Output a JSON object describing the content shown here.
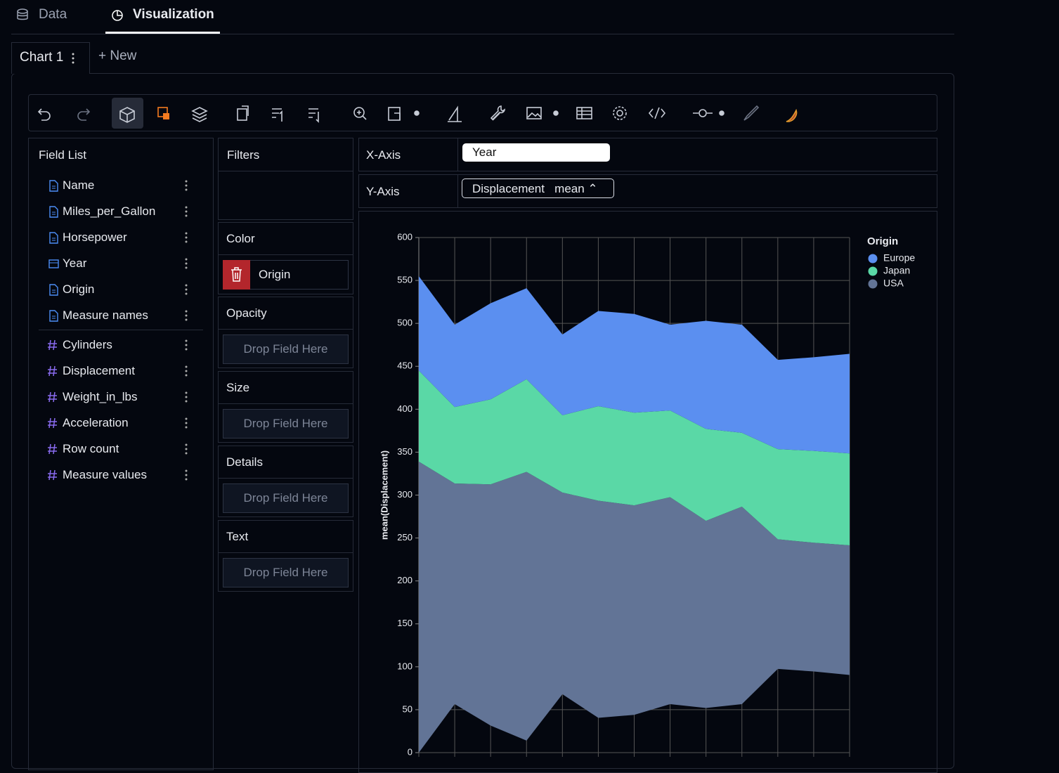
{
  "tabs": {
    "data": "Data",
    "visualization": "Visualization"
  },
  "chart_tabs": {
    "current": "Chart 1",
    "new": "+ New"
  },
  "field_list": {
    "title": "Field List",
    "dimensions": [
      "Name",
      "Miles_per_Gallon",
      "Horsepower",
      "Year",
      "Origin",
      "Measure names"
    ],
    "measures": [
      "Cylinders",
      "Displacement",
      "Weight_in_lbs",
      "Acceleration",
      "Row count",
      "Measure values"
    ]
  },
  "encodings": {
    "filters": "Filters",
    "color": "Color",
    "color_field": "Origin",
    "opacity": "Opacity",
    "size": "Size",
    "details": "Details",
    "text": "Text",
    "placeholder": "Drop Field Here"
  },
  "x_axis": {
    "label": "X-Axis",
    "field": "Year"
  },
  "y_axis": {
    "label": "Y-Axis",
    "field": "Displacement",
    "aggregation": "mean"
  },
  "chart_data": {
    "type": "area",
    "stack": "center",
    "ylabel": "mean(Displacement)",
    "legend_title": "Origin",
    "legend": "top-right",
    "grid": true,
    "categories": [
      null,
      null,
      null,
      null,
      null,
      null,
      null,
      null,
      null,
      null,
      null,
      null,
      null
    ],
    "series": [
      {
        "name": "Europe",
        "color": "#5b8ff0",
        "values": [
          110,
          96,
          112,
          106,
          94,
          111,
          115,
          100,
          126,
          126,
          104,
          109,
          116
        ]
      },
      {
        "name": "Japan",
        "color": "#5ad8a6",
        "values": [
          106,
          89,
          99,
          108,
          90,
          110,
          108,
          101,
          107,
          86,
          105,
          107,
          107
        ]
      },
      {
        "name": "USA",
        "color": "#627496",
        "values": [
          339,
          257,
          281,
          313,
          235,
          253,
          244,
          241,
          218,
          230,
          151,
          150,
          151
        ]
      }
    ],
    "ylim": [
      0,
      600
    ],
    "yticks": [
      0,
      50,
      100,
      150,
      200,
      250,
      300,
      350,
      400,
      450,
      500,
      550,
      600
    ]
  }
}
